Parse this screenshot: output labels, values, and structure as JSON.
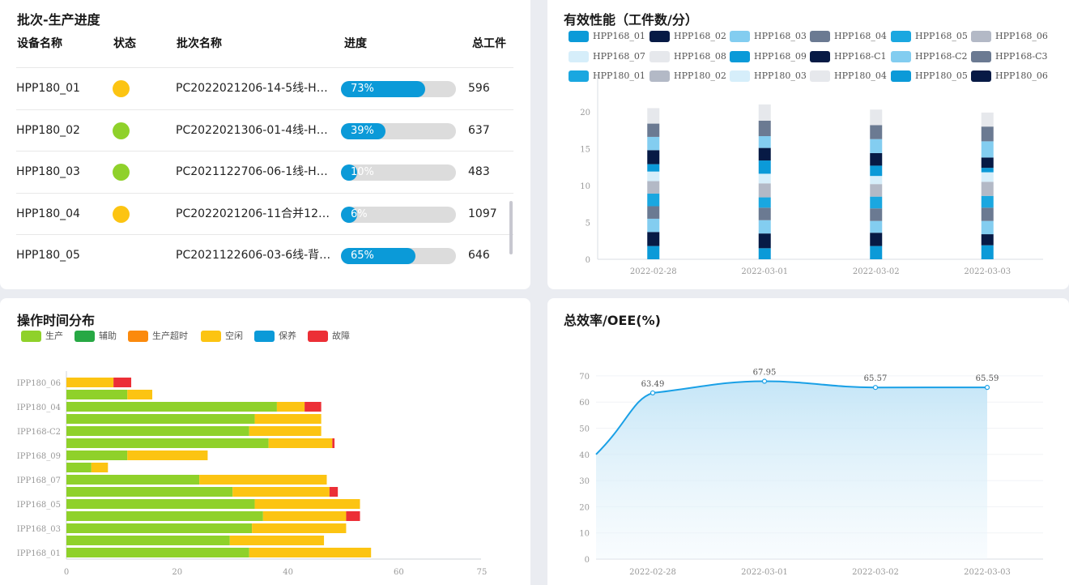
{
  "progress_panel": {
    "title": "批次-生产进度",
    "headers": {
      "device": "设备名称",
      "status": "状态",
      "batch": "批次名称",
      "progress": "进度",
      "total": "总工件"
    },
    "rows": [
      {
        "device": "HPP180_01",
        "status_color": "#fcc412",
        "batch": "PC2022021206-14-5线-H…",
        "progress": 0.73,
        "progress_label": "73%",
        "total": "596"
      },
      {
        "device": "HPP180_02",
        "status_color": "#8fd12a",
        "batch": "PC2022021306-01-4线-H…",
        "progress": 0.39,
        "progress_label": "39%",
        "total": "637"
      },
      {
        "device": "HPP180_03",
        "status_color": "#8fd12a",
        "batch": "PC2021122706-06-1线-H…",
        "progress": 0.1,
        "progress_label": "10%",
        "total": "483"
      },
      {
        "device": "HPP180_04",
        "status_color": "#fcc412",
        "batch": "PC2022021206-11合并12…",
        "progress": 0.06,
        "progress_label": "6%",
        "total": "1097"
      },
      {
        "device": "HPP180_05",
        "status_color": "",
        "batch": "PC2021122606-03-6线-背…",
        "progress": 0.65,
        "progress_label": "65%",
        "total": "646"
      }
    ]
  },
  "performance_panel": {
    "title": "有效性能（工件数/分）",
    "legend": [
      {
        "label": "HPP168_01",
        "color": "#0b9ad8"
      },
      {
        "label": "HPP168_02",
        "color": "#071a45"
      },
      {
        "label": "HPP168_03",
        "color": "#83cdf0"
      },
      {
        "label": "HPP168_04",
        "color": "#6b7a92"
      },
      {
        "label": "HPP168_05",
        "color": "#1aa7e0"
      },
      {
        "label": "HPP168_06",
        "color": "#b3b9c6"
      },
      {
        "label": "HPP168_07",
        "color": "#d6eefa"
      },
      {
        "label": "HPP168_08",
        "color": "#e6e8ec"
      },
      {
        "label": "HPP168_09",
        "color": "#0b9ad8"
      },
      {
        "label": "HPP168-C1",
        "color": "#071a45"
      },
      {
        "label": "HPP168-C2",
        "color": "#83cdf0"
      },
      {
        "label": "HPP168-C3",
        "color": "#6b7a92"
      },
      {
        "label": "HPP180_01",
        "color": "#1aa7e0"
      },
      {
        "label": "HPP180_02",
        "color": "#b3b9c6"
      },
      {
        "label": "HPP180_03",
        "color": "#d6eefa"
      },
      {
        "label": "HPP180_04",
        "color": "#e6e8ec"
      },
      {
        "label": "HPP180_05",
        "color": "#0b9ad8"
      },
      {
        "label": "HPP180_06",
        "color": "#071a45"
      }
    ]
  },
  "operation_panel": {
    "title": "操作时间分布",
    "legend": [
      {
        "label": "生产",
        "color": "#8fd12a"
      },
      {
        "label": "辅助",
        "color": "#27a844"
      },
      {
        "label": "生产超时",
        "color": "#fb8a0d"
      },
      {
        "label": "空闲",
        "color": "#fcc412"
      },
      {
        "label": "保养",
        "color": "#0b9ad8"
      },
      {
        "label": "故障",
        "color": "#ec2f36"
      }
    ]
  },
  "oee_panel": {
    "title": "总效率/OEE(%)"
  },
  "chart_data": [
    {
      "type": "bar",
      "stacked": true,
      "categories": [
        "2022-02-28",
        "2022-03-01",
        "2022-03-02",
        "2022-03-03"
      ],
      "ylim": [
        0,
        22
      ],
      "yticks": [
        0,
        5,
        10,
        15,
        20
      ],
      "series": [
        {
          "name": "HPP168_01",
          "values": [
            1.8,
            1.5,
            1.8,
            1.9
          ]
        },
        {
          "name": "HPP168_02",
          "values": [
            1.9,
            2.0,
            1.8,
            1.5
          ]
        },
        {
          "name": "HPP168_03",
          "values": [
            1.8,
            1.8,
            1.6,
            1.8
          ]
        },
        {
          "name": "HPP168_04",
          "values": [
            1.7,
            1.7,
            1.7,
            1.8
          ]
        },
        {
          "name": "HPP168_05",
          "values": [
            1.7,
            1.4,
            1.6,
            1.6
          ]
        },
        {
          "name": "HPP168_06",
          "values": [
            1.7,
            1.9,
            1.7,
            1.9
          ]
        },
        {
          "name": "HPP168_07",
          "values": [
            1.3,
            1.3,
            1.1,
            1.3
          ]
        },
        {
          "name": "HPP168_08",
          "values": [
            0,
            0,
            0,
            0
          ]
        },
        {
          "name": "HPP168_09",
          "values": [
            1.0,
            1.8,
            1.4,
            0.6
          ]
        },
        {
          "name": "HPP168-C1",
          "values": [
            1.9,
            1.7,
            1.7,
            1.4
          ]
        },
        {
          "name": "HPP168-C2",
          "values": [
            1.8,
            1.6,
            1.9,
            2.2
          ]
        },
        {
          "name": "HPP168-C3",
          "values": [
            1.8,
            2.1,
            1.9,
            2.0
          ]
        },
        {
          "name": "HPP180_01",
          "values": [
            0,
            0,
            0,
            0
          ]
        },
        {
          "name": "HPP180_02",
          "values": [
            0,
            0,
            0,
            0
          ]
        },
        {
          "name": "HPP180_03",
          "values": [
            0,
            0,
            0,
            0
          ]
        },
        {
          "name": "HPP180_04",
          "values": [
            2.1,
            2.2,
            2.1,
            1.9
          ]
        },
        {
          "name": "HPP180_05",
          "values": [
            0,
            0,
            0,
            0
          ]
        },
        {
          "name": "HPP180_06",
          "values": [
            0,
            0,
            0,
            0
          ]
        }
      ]
    },
    {
      "type": "bar",
      "orientation": "horizontal",
      "stacked": true,
      "categories": [
        "HPP168_01",
        "HPP168_02",
        "HPP168_03",
        "HPP168_04",
        "HPP168_05",
        "HPP168_06",
        "HPP168_07",
        "HPP168_08",
        "HPP168_09",
        "HPP168-C1",
        "HPP168-C2",
        "HPP168-C3",
        "HPP180_04",
        "HPP180_05",
        "HPP180_06"
      ],
      "tick_labels": [
        "IPP168_01",
        "",
        "IPP168_03",
        "",
        "IPP168_05",
        "",
        "IPP168_07",
        "",
        "IPP168_09",
        "",
        "IPP168-C2",
        "",
        "IPP180_04",
        "",
        "IPP180_06"
      ],
      "xlim": [
        0,
        75
      ],
      "xticks": [
        0,
        20,
        40,
        60,
        75
      ],
      "series": [
        {
          "name": "生产",
          "values": [
            33,
            29.5,
            33.5,
            35.5,
            34,
            30,
            24,
            4.5,
            11,
            36.5,
            33,
            34,
            38,
            11,
            0
          ]
        },
        {
          "name": "辅助",
          "values": [
            0,
            0,
            0,
            0,
            0,
            0,
            0,
            0,
            0,
            0,
            0,
            0,
            0,
            0,
            0
          ]
        },
        {
          "name": "生产超时",
          "values": [
            0,
            0,
            0,
            0,
            0,
            0,
            0,
            0,
            0,
            0,
            0,
            0,
            0,
            0,
            0
          ]
        },
        {
          "name": "空闲",
          "values": [
            22,
            17,
            17,
            15,
            19,
            17.5,
            23,
            3,
            14.5,
            11.5,
            13,
            12,
            5,
            4.5,
            8.5
          ]
        },
        {
          "name": "保养",
          "values": [
            0,
            0,
            0,
            0,
            0,
            0,
            0,
            0,
            0,
            0,
            0,
            0,
            0,
            0,
            0
          ]
        },
        {
          "name": "故障",
          "values": [
            0,
            0,
            0,
            2.5,
            0,
            1.5,
            0,
            0,
            0,
            0.4,
            0,
            0,
            3,
            0,
            3.2
          ]
        }
      ]
    },
    {
      "type": "area",
      "x": [
        "2022-02-28",
        "2022-03-01",
        "2022-03-02",
        "2022-03-03"
      ],
      "y": [
        63.49,
        67.95,
        65.57,
        65.59
      ],
      "data_labels": [
        "63.49",
        "67.95",
        "65.57",
        "65.59"
      ],
      "start_value": 40,
      "ylim": [
        0,
        70
      ],
      "yticks": [
        0,
        10,
        20,
        30,
        40,
        50,
        60,
        70
      ]
    }
  ]
}
